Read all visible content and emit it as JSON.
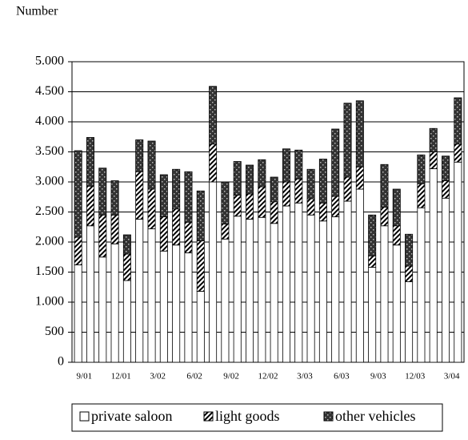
{
  "chart_data": {
    "type": "stacked_bar",
    "y_label": "Number",
    "categories": [
      "9/01",
      null,
      null,
      "12/01",
      null,
      null,
      "3/02",
      null,
      null,
      "6/02",
      null,
      null,
      "9/02",
      null,
      null,
      "12/02",
      null,
      null,
      "3/03",
      null,
      null,
      "6/03",
      null,
      null,
      "9/03",
      null,
      null,
      "12/03",
      null,
      null,
      "3/04",
      null
    ],
    "series": [
      {
        "name": "private saloon",
        "color": "#ffffff",
        "pattern": "solid",
        "values": [
          1620,
          2270,
          1750,
          1970,
          1360,
          2380,
          2220,
          1850,
          1950,
          1820,
          1180,
          3000,
          2050,
          2430,
          2380,
          2410,
          2310,
          2600,
          2650,
          2450,
          2350,
          2420,
          2680,
          2880,
          1580,
          2270,
          1950,
          1340,
          2570,
          3220,
          2730,
          3330
        ]
      },
      {
        "name": "light goods",
        "color": "#000000",
        "pattern": "hatch",
        "values": [
          460,
          660,
          700,
          480,
          440,
          790,
          660,
          570,
          600,
          510,
          840,
          630,
          250,
          350,
          420,
          510,
          360,
          400,
          400,
          270,
          300,
          340,
          400,
          370,
          190,
          310,
          320,
          260,
          400,
          280,
          290,
          300
        ]
      },
      {
        "name": "other vehicles",
        "color": "#333333",
        "pattern": "dots",
        "values": [
          1440,
          810,
          780,
          570,
          320,
          530,
          800,
          700,
          660,
          840,
          830,
          960,
          700,
          560,
          480,
          450,
          410,
          550,
          480,
          490,
          730,
          1120,
          1230,
          1100,
          680,
          710,
          610,
          530,
          480,
          390,
          410,
          770
        ]
      }
    ],
    "ylim": [
      0,
      5000
    ],
    "yticks": [
      0,
      500,
      {
        "value": 1000,
        "label": "1.000"
      },
      {
        "value": 1500,
        "label": "1.500"
      },
      {
        "value": 2000,
        "label": "2.000"
      },
      {
        "value": 2500,
        "label": "2.500"
      },
      {
        "value": 3000,
        "label": "3.000"
      },
      {
        "value": 3500,
        "label": "3.500"
      },
      {
        "value": 4000,
        "label": "4.000"
      },
      {
        "value": 4500,
        "label": "4.500"
      },
      {
        "value": 5000,
        "label": "5.000"
      }
    ],
    "grid": true
  }
}
